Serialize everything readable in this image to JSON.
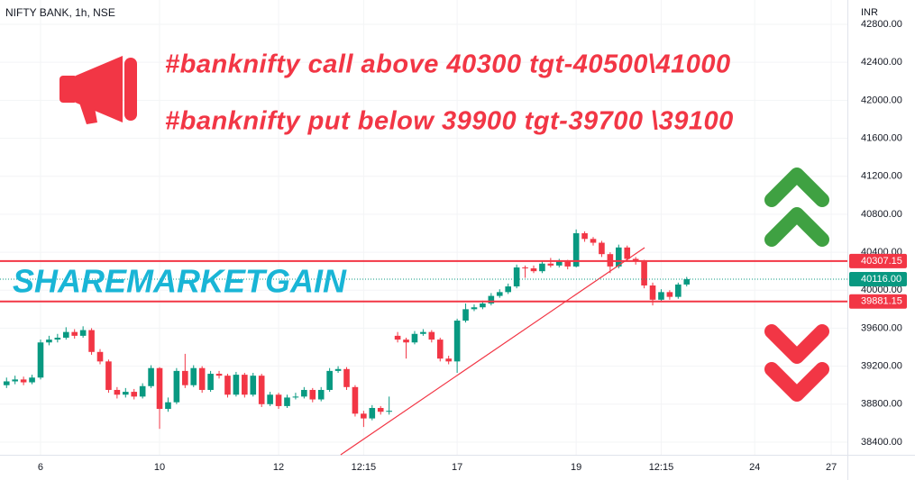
{
  "chart_data": {
    "type": "candlestick",
    "title": "NIFTY BANK, 1h, NSE",
    "currency": "INR",
    "annotations": [
      "#banknifty call above 40300 tgt-40500\\41000",
      "#banknifty put below 39900 tgt-39700 \\39100"
    ],
    "watermark": "SHAREMARKETGAIN",
    "up_color": "#089981",
    "down_color": "#f23645",
    "grid": true,
    "xlim": [
      -4.77,
      94.9
    ],
    "ylim": [
      38267,
      43056
    ],
    "xticks": [
      {
        "value": 0,
        "label": "6"
      },
      {
        "value": 14,
        "label": "10"
      },
      {
        "value": 28,
        "label": "12"
      },
      {
        "value": 38,
        "label": "12:15"
      },
      {
        "value": 49,
        "label": "17"
      },
      {
        "value": 63,
        "label": "19"
      },
      {
        "value": 73,
        "label": "12:15"
      },
      {
        "value": 84,
        "label": "24"
      },
      {
        "value": 93,
        "label": "27"
      }
    ],
    "yticks": [
      {
        "value": 38400,
        "label": "38400.00"
      },
      {
        "value": 38800,
        "label": "38800.00"
      },
      {
        "value": 39200,
        "label": "39200.00"
      },
      {
        "value": 39600,
        "label": "39600.00"
      },
      {
        "value": 40000,
        "label": "40000.00"
      },
      {
        "value": 40400,
        "label": "40400.00"
      },
      {
        "value": 40800,
        "label": "40800.00"
      },
      {
        "value": 41200,
        "label": "41200.00"
      },
      {
        "value": 41600,
        "label": "41600.00"
      },
      {
        "value": 42000,
        "label": "42000.00"
      },
      {
        "value": 42400,
        "label": "42400.00"
      },
      {
        "value": 42800,
        "label": "42800.00"
      }
    ],
    "levels": [
      {
        "value": 40307.15,
        "label": "40307.15",
        "color": "#f23645"
      },
      {
        "value": 39881.15,
        "label": "39881.15",
        "color": "#f23645"
      }
    ],
    "last_price": {
      "value": 40116,
      "label": "40116.00",
      "color": "#089981"
    },
    "trendline": {
      "x": [
        35.3,
        71.05
      ],
      "y": [
        38267,
        40448
      ],
      "color": "#f23645"
    },
    "candles": {
      "x": [
        -4,
        -3,
        -2,
        -1,
        0,
        1,
        2,
        3,
        4,
        5,
        6,
        7,
        8,
        9,
        10,
        11,
        12,
        13,
        14,
        15,
        16,
        17,
        18,
        19,
        20,
        21,
        22,
        23,
        24,
        25,
        26,
        27,
        28,
        29,
        30,
        31,
        32,
        33,
        34,
        35,
        36,
        37,
        38,
        39,
        40,
        41,
        42,
        43,
        44,
        45,
        46,
        47,
        48,
        49,
        50,
        51,
        52,
        53,
        54,
        55,
        56,
        57,
        58,
        59,
        60,
        61,
        62,
        63,
        64,
        65,
        66,
        67,
        68,
        69,
        70,
        71,
        72,
        73,
        74,
        75,
        76
      ],
      "open": [
        39000,
        39040,
        39060,
        39030,
        39080,
        39450,
        39480,
        39500,
        39560,
        39520,
        39580,
        39350,
        39250,
        38950,
        38900,
        38930,
        38880,
        38990,
        39180,
        38750,
        38820,
        39150,
        39000,
        39180,
        38950,
        39120,
        39100,
        38900,
        39110,
        38900,
        39100,
        38800,
        38900,
        38780,
        38870,
        38880,
        38950,
        38850,
        38950,
        39150,
        39170,
        38980,
        38700,
        38650,
        38760,
        38720,
        39520,
        39480,
        39450,
        39540,
        39560,
        39480,
        39280,
        39250,
        39680,
        39800,
        39820,
        39860,
        39940,
        39980,
        40040,
        40240,
        40230,
        40200,
        40280,
        40260,
        40300,
        40250,
        40600,
        40540,
        40500,
        40380,
        40250,
        40450,
        40330,
        40300,
        40050,
        39900,
        39980,
        39930,
        40060
      ],
      "high": [
        39080,
        39100,
        39090,
        39110,
        39480,
        39520,
        39540,
        39610,
        39590,
        39620,
        39600,
        39380,
        39270,
        38980,
        38970,
        38960,
        39020,
        39210,
        39190,
        38870,
        39180,
        39330,
        39210,
        39200,
        39150,
        39150,
        39120,
        39140,
        39130,
        39130,
        39120,
        38930,
        38920,
        38900,
        38920,
        38980,
        38970,
        38980,
        39180,
        39200,
        39190,
        39000,
        38730,
        38790,
        38780,
        38880,
        39560,
        39500,
        39570,
        39590,
        39580,
        39500,
        39310,
        39700,
        39860,
        39850,
        39890,
        39970,
        40010,
        40070,
        40270,
        40260,
        40260,
        40310,
        40340,
        40330,
        40320,
        40640,
        40620,
        40560,
        40520,
        40400,
        40480,
        40470,
        40350,
        40320,
        40080,
        40010,
        40000,
        40080,
        40140
      ],
      "low": [
        38970,
        39010,
        39000,
        39010,
        39060,
        39420,
        39450,
        39480,
        39490,
        39500,
        39320,
        39220,
        38920,
        38860,
        38870,
        38850,
        38860,
        38970,
        38540,
        38720,
        38800,
        38970,
        38980,
        38920,
        38930,
        39070,
        38870,
        38880,
        38870,
        38880,
        38770,
        38780,
        38750,
        38760,
        38850,
        38860,
        38820,
        38830,
        38930,
        39130,
        38950,
        38670,
        38560,
        38630,
        38690,
        38690,
        39450,
        39280,
        39430,
        39520,
        39450,
        39250,
        39220,
        39130,
        39660,
        39780,
        39800,
        39840,
        39920,
        39960,
        40020,
        40130,
        40180,
        40180,
        40240,
        40240,
        40220,
        40240,
        40510,
        40470,
        40350,
        40180,
        40230,
        40300,
        40270,
        40020,
        39840,
        39880,
        39900,
        39910,
        40040
      ],
      "close": [
        39040,
        39060,
        39030,
        39080,
        39450,
        39480,
        39500,
        39560,
        39520,
        39580,
        39350,
        39250,
        38950,
        38900,
        38930,
        38880,
        38990,
        39180,
        38750,
        38820,
        39150,
        39000,
        39180,
        38950,
        39120,
        39100,
        38900,
        39110,
        38900,
        39100,
        38800,
        38900,
        38780,
        38870,
        38880,
        38950,
        38850,
        38950,
        39150,
        39170,
        38980,
        38700,
        38650,
        38760,
        38720,
        38730,
        39480,
        39450,
        39540,
        39560,
        39480,
        39280,
        39250,
        39680,
        39800,
        39820,
        39860,
        39940,
        39980,
        40040,
        40240,
        40230,
        40200,
        40280,
        40260,
        40300,
        40250,
        40600,
        40540,
        40500,
        40380,
        40250,
        40450,
        40330,
        40300,
        40050,
        39900,
        39980,
        39930,
        40060,
        40116
      ]
    }
  }
}
